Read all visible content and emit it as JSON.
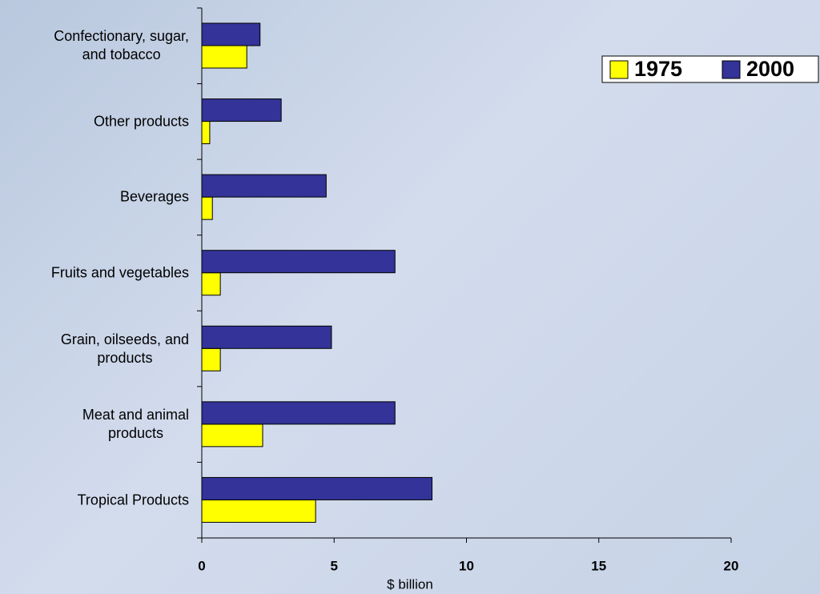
{
  "chart_data": {
    "type": "barh",
    "categories": [
      "Confectionary, sugar,\nand tobacco",
      "Other products",
      "Beverages",
      "Fruits and vegetables",
      "Grain, oilseeds, and\nproducts",
      "Meat and animal\nproducts",
      "Tropical Products"
    ],
    "series": [
      {
        "name": "1975",
        "color": "#ffff00",
        "values": [
          1.7,
          0.3,
          0.4,
          0.7,
          0.7,
          2.3,
          4.3
        ]
      },
      {
        "name": "2000",
        "color": "#333399",
        "values": [
          2.2,
          3.0,
          4.7,
          7.3,
          4.9,
          7.3,
          8.7
        ]
      }
    ],
    "xlabel": "$ billion",
    "xlim": [
      0,
      20
    ],
    "xticks": [
      0,
      5,
      10,
      15,
      20
    ],
    "legend": "upper right"
  }
}
